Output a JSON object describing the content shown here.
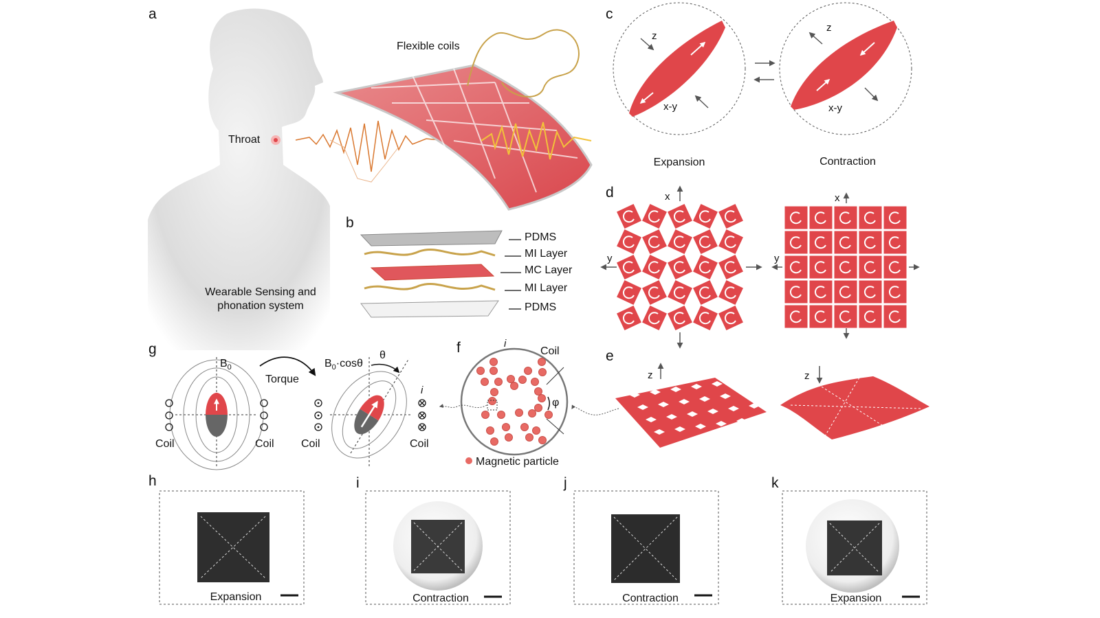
{
  "colors": {
    "accent_red": "#e0464a",
    "dark_gray": "#555555",
    "wave_orange": "#d9772e",
    "wave_yellow": "#f2c23a"
  },
  "panels": {
    "a": {
      "label": "a",
      "flexible_coils": "Flexible coils",
      "throat": "Throat",
      "system_line1": "Wearable Sensing and",
      "system_line2": "phonation system"
    },
    "b": {
      "label": "b",
      "layers": [
        "PDMS",
        "MI Layer",
        "MC Layer",
        "MI Layer",
        "PDMS"
      ]
    },
    "c": {
      "label": "c",
      "z": "z",
      "xy": "x-y",
      "expansion": "Expansion",
      "contraction": "Contraction"
    },
    "d": {
      "label": "d",
      "x": "x",
      "y": "y"
    },
    "e": {
      "label": "e",
      "z": "z"
    },
    "f": {
      "label": "f",
      "i": "i",
      "coil": "Coil",
      "phi": "φ",
      "particle_legend": "Magnetic particle"
    },
    "g": {
      "label": "g",
      "b0": "B",
      "b0_sub": "0",
      "torque": "Torque",
      "b0cos": "B",
      "b0cos_sub": "0",
      "b0cos_rest": "·cosθ",
      "theta": "θ",
      "i": "i",
      "coil": "Coil"
    },
    "h": {
      "label": "h",
      "caption": "Expansion"
    },
    "i": {
      "label": "i",
      "caption": "Contraction"
    },
    "j": {
      "label": "j",
      "caption": "Contraction"
    },
    "k": {
      "label": "k",
      "caption": "Expansion"
    }
  }
}
